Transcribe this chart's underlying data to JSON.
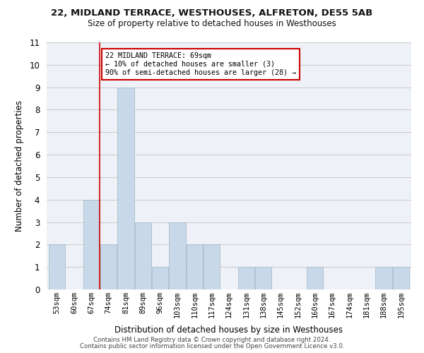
{
  "title": "22, MIDLAND TERRACE, WESTHOUSES, ALFRETON, DE55 5AB",
  "subtitle": "Size of property relative to detached houses in Westhouses",
  "xlabel": "Distribution of detached houses by size in Westhouses",
  "ylabel": "Number of detached properties",
  "categories": [
    "53sqm",
    "60sqm",
    "67sqm",
    "74sqm",
    "81sqm",
    "89sqm",
    "96sqm",
    "103sqm",
    "110sqm",
    "117sqm",
    "124sqm",
    "131sqm",
    "138sqm",
    "145sqm",
    "152sqm",
    "160sqm",
    "167sqm",
    "174sqm",
    "181sqm",
    "188sqm",
    "195sqm"
  ],
  "values": [
    2,
    0,
    4,
    2,
    9,
    3,
    1,
    3,
    2,
    2,
    0,
    1,
    1,
    0,
    0,
    1,
    0,
    0,
    0,
    1,
    1
  ],
  "bar_color": "#c8d8e8",
  "bar_edge_color": "#aabccc",
  "vline_color": "#cc0000",
  "vline_x": 2.5,
  "annotation_text": "22 MIDLAND TERRACE: 69sqm\n← 10% of detached houses are smaller (3)\n90% of semi-detached houses are larger (28) →",
  "annotation_box_color": "#ffffff",
  "annotation_box_edge": "#cc0000",
  "ylim": [
    0,
    11
  ],
  "yticks": [
    0,
    1,
    2,
    3,
    4,
    5,
    6,
    7,
    8,
    9,
    10,
    11
  ],
  "grid_color": "#c8c8c8",
  "background_color": "#eef2f8",
  "footer_line1": "Contains HM Land Registry data © Crown copyright and database right 2024.",
  "footer_line2": "Contains public sector information licensed under the Open Government Licence v3.0."
}
